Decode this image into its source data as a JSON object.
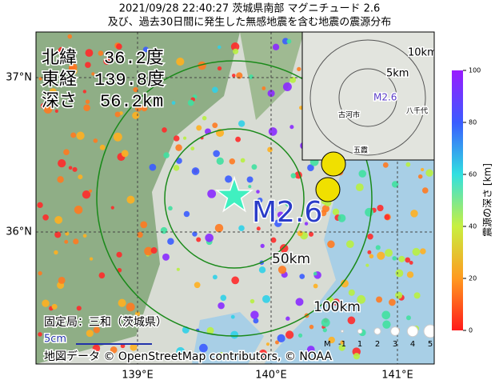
{
  "title": [
    "2021/09/28 22:40:27  茨城県南部 マグニチュード 2.6",
    "及び、過去30日間に発生した無感地震を含む地震の震源分布"
  ],
  "info": {
    "lat_label": "北緯",
    "lat": "36.2度",
    "lon_label": "東経",
    "lon": "139.8度",
    "depth_label": "深さ",
    "depth": "56.2km"
  },
  "magnitude_label": "M2.6",
  "axes": {
    "lat_ticks": [
      "37°N",
      "36°N"
    ],
    "lon_ticks": [
      "139°E",
      "140°E",
      "141°E"
    ]
  },
  "rings": [
    "50km",
    "100km"
  ],
  "inset": {
    "rings": [
      "10km",
      "5km"
    ],
    "label": "M2.6",
    "places": [
      "古河市",
      "八千代",
      "五霞"
    ]
  },
  "station": "固定局：三和（茨城県）",
  "scale": "5cm",
  "credit": "地図データ © OpenStreetMap contributors, © NOAA",
  "colorbar": {
    "label": "震源の深さ [km]",
    "range": [
      0,
      100
    ],
    "ticks": [
      0,
      20,
      40,
      60,
      80,
      100
    ]
  },
  "legend": {
    "prefix": "M",
    "magnitudes": [
      -1,
      1,
      2,
      3,
      4,
      5
    ]
  }
}
